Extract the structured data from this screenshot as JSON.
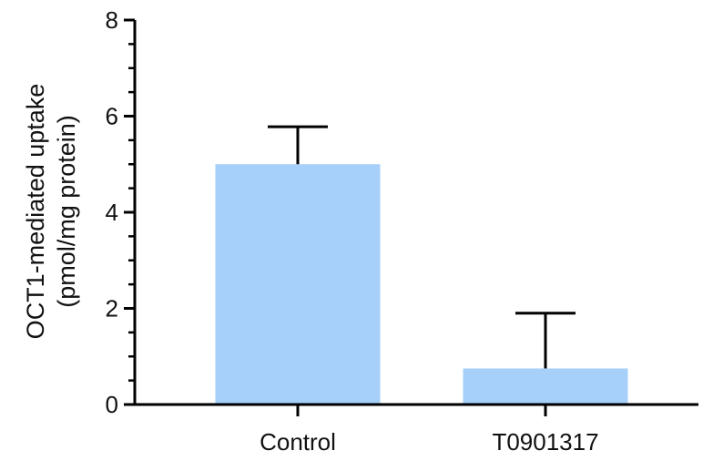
{
  "chart_data": {
    "type": "bar",
    "categories": [
      "Control",
      "T0901317"
    ],
    "values": [
      5.0,
      0.75
    ],
    "error_upper": [
      5.78,
      1.9
    ],
    "ylabel": [
      "OCT1-mediated uptake",
      "(pmol/mg protein)"
    ],
    "xlabel": "",
    "ylim": [
      0,
      8
    ],
    "yticks": [
      0,
      2,
      4,
      6,
      8
    ],
    "bar_color": "#a6d0fa",
    "axis_color": "#000000",
    "grid": false
  }
}
